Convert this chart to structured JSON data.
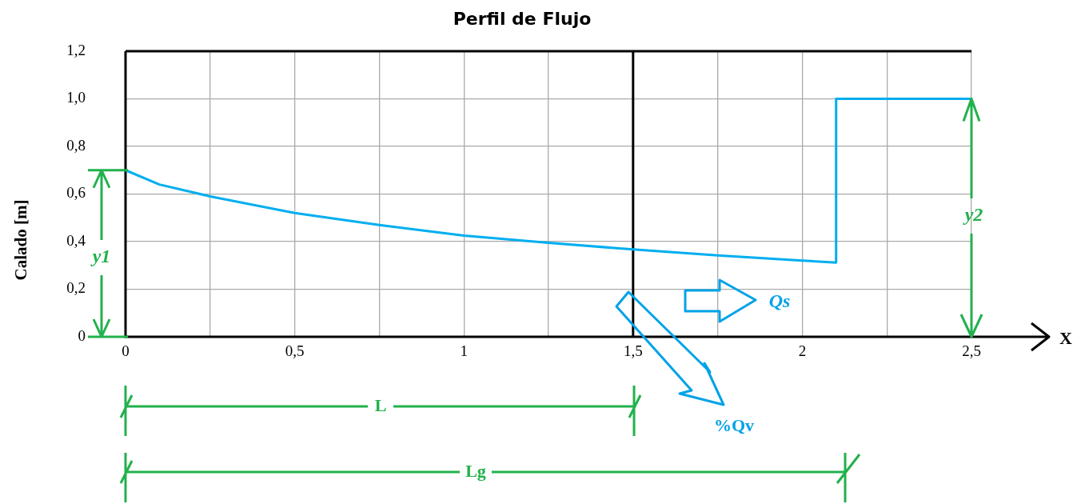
{
  "chart_data": {
    "type": "line",
    "title": "Perfil de Flujo",
    "ylabel": "Calado [m]",
    "x": [
      0,
      0.1,
      0.25,
      0.5,
      0.75,
      1,
      1.25,
      1.5,
      1.75,
      2,
      2.1,
      2.1,
      2.5
    ],
    "series": [
      {
        "color": "#00aeef",
        "values": [
          0.7,
          0.64,
          0.59,
          0.52,
          0.47,
          0.425,
          0.395,
          0.367,
          0.342,
          0.32,
          0.312,
          1.0,
          1.0
        ]
      }
    ],
    "xlim": [
      0,
      2.5
    ],
    "xticks": [
      0,
      {
        "value": 0.25,
        "label": null
      },
      {
        "value": 0.5,
        "label": "0,5"
      },
      {
        "value": 0.75,
        "label": null
      },
      1,
      {
        "value": 1.25,
        "label": null
      },
      {
        "value": 1.5,
        "label": "1,5"
      },
      {
        "value": 1.75,
        "label": null
      },
      2,
      {
        "value": 2.25,
        "label": null
      },
      {
        "value": 2.5,
        "label": "2,5"
      }
    ],
    "ylim": [
      0,
      1.2
    ],
    "yticks": [
      0,
      {
        "value": 0.2,
        "label": "0,2"
      },
      {
        "value": 0.4,
        "label": "0,4"
      },
      {
        "value": 0.6,
        "label": "0,6"
      },
      {
        "value": 0.8,
        "label": "0,8"
      },
      {
        "value": 1,
        "label": "1,0"
      },
      {
        "value": 1.2,
        "label": "1,2"
      }
    ],
    "grid": true,
    "legend": false,
    "marker": "none",
    "line_style": "solid",
    "ref_lines": [
      {
        "axis": "x",
        "value": 1.5,
        "color": "#000000"
      }
    ],
    "annotations": [
      "y1",
      "y2",
      "Qs",
      "%Qv",
      "L",
      "Lg",
      "X"
    ]
  }
}
